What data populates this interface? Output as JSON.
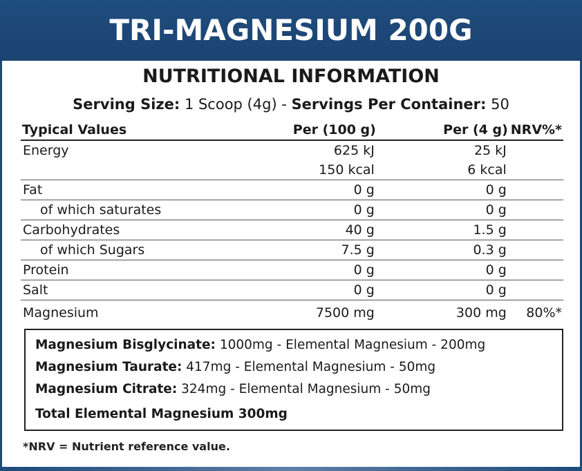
{
  "banner": {
    "title": "TRI-MAGNESIUM 200G"
  },
  "heading": "NUTRITIONAL INFORMATION",
  "serving": {
    "size_label": "Serving Size:",
    "size_value": " 1 Scoop (4g) - ",
    "per_container_label": "Servings Per Container:",
    "per_container_value": " 50"
  },
  "table": {
    "headers": [
      "Typical Values",
      "Per (100 g)",
      "Per (4 g)",
      "NRV%*"
    ],
    "rows": [
      {
        "name": "Energy",
        "per100": "625 kJ",
        "per4": "25 kJ",
        "nrv": ""
      },
      {
        "name": "",
        "per100": "150 kcal",
        "per4": "6 kcal",
        "nrv": ""
      },
      {
        "name": "Fat",
        "per100": "0 g",
        "per4": "0 g",
        "nrv": ""
      },
      {
        "name": "of which saturates",
        "per100": "0 g",
        "per4": "0 g",
        "nrv": ""
      },
      {
        "name": "Carbohydrates",
        "per100": "40 g",
        "per4": "1.5 g",
        "nrv": ""
      },
      {
        "name": "of which Sugars",
        "per100": "7.5 g",
        "per4": "0.3 g",
        "nrv": ""
      },
      {
        "name": "Protein",
        "per100": "0 g",
        "per4": "0 g",
        "nrv": ""
      },
      {
        "name": "Salt",
        "per100": "0 g",
        "per4": "0 g",
        "nrv": ""
      },
      {
        "name": "Magnesium",
        "per100": "7500 mg",
        "per4": "300 mg",
        "nrv": "80%*"
      }
    ]
  },
  "minerals": [
    {
      "label": "Magnesium Bisglycinate:",
      "detail": " 1000mg - Elemental Magnesium - 200mg"
    },
    {
      "label": "Magnesium Taurate:",
      "detail": " 417mg - Elemental Magnesium - 50mg"
    },
    {
      "label": "Magnesium Citrate:",
      "detail": " 324mg - Elemental Magnesium - 50mg"
    }
  ],
  "minerals_total": "Total Elemental Magnesium 300mg",
  "footnote": "*NRV = Nutrient reference value.",
  "colors": {
    "banner": "#1f4d7d",
    "text": "#1a1a1a"
  }
}
